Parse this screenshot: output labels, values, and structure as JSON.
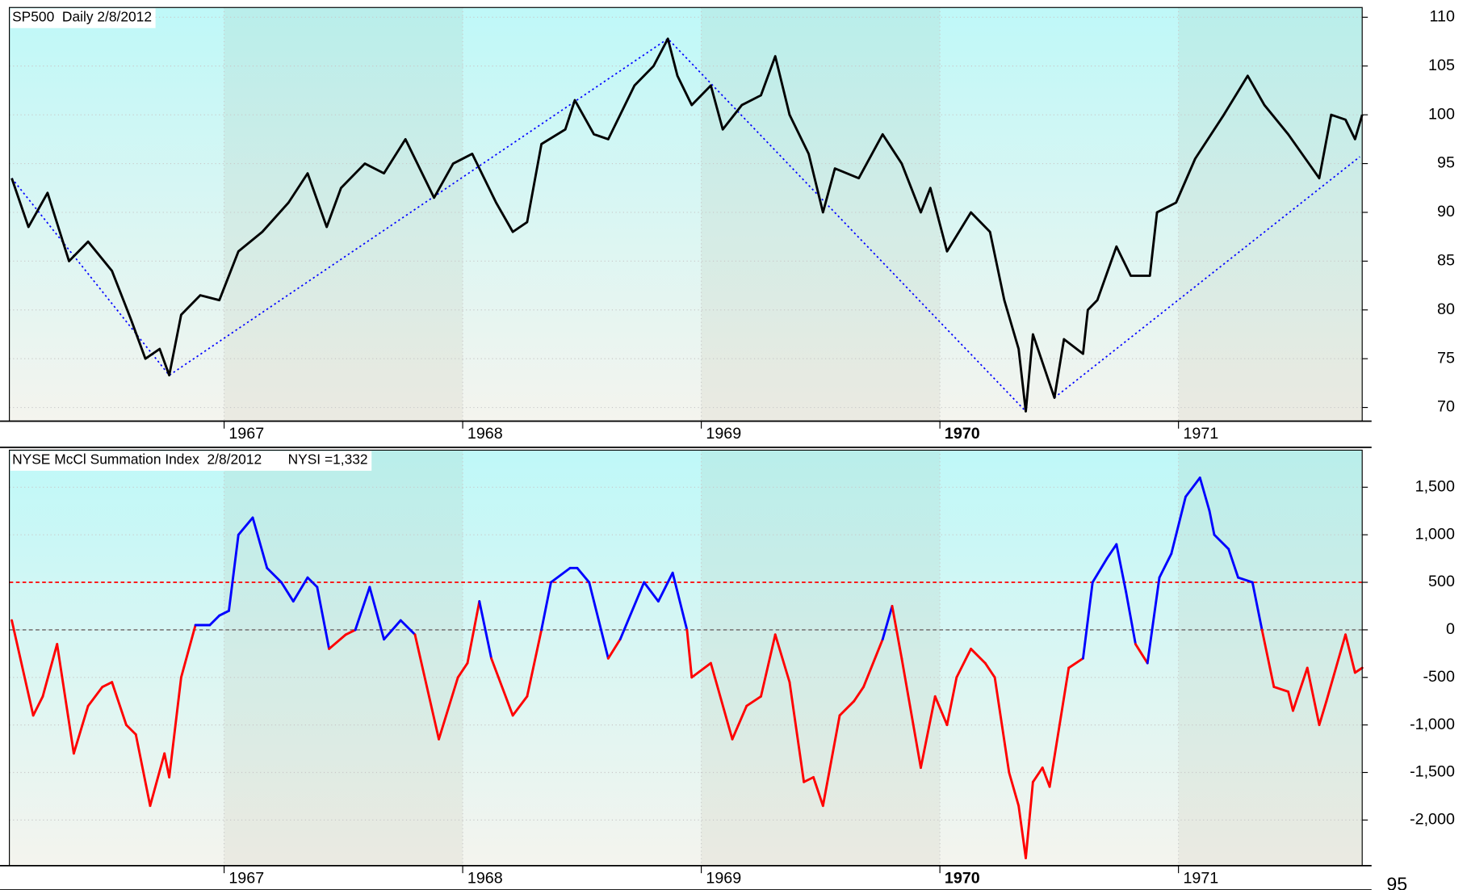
{
  "chart_data": [
    {
      "type": "line",
      "title": "SP500  Daily 2/8/2012",
      "x": [
        1966.11,
        1966.18,
        1966.26,
        1966.35,
        1966.43,
        1966.53,
        1966.61,
        1966.67,
        1966.73,
        1966.77,
        1966.82,
        1966.9,
        1966.98,
        1967.06,
        1967.16,
        1967.27,
        1967.35,
        1967.43,
        1967.49,
        1967.59,
        1967.67,
        1967.76,
        1967.88,
        1967.96,
        1968.04,
        1968.14,
        1968.21,
        1968.27,
        1968.33,
        1968.43,
        1968.47,
        1968.55,
        1968.61,
        1968.72,
        1968.8,
        1968.86,
        1968.9,
        1968.96,
        1969.04,
        1969.09,
        1969.17,
        1969.25,
        1969.31,
        1969.37,
        1969.45,
        1969.51,
        1969.56,
        1969.66,
        1969.76,
        1969.84,
        1969.92,
        1969.96,
        1970.03,
        1970.13,
        1970.21,
        1970.27,
        1970.33,
        1970.36,
        1970.39,
        1970.48,
        1970.52,
        1970.6,
        1970.62,
        1970.66,
        1970.74,
        1970.8,
        1970.88,
        1970.91,
        1970.99,
        1971.07,
        1971.19,
        1971.29,
        1971.36,
        1971.46,
        1971.59,
        1971.64,
        1971.7,
        1971.74,
        1971.77
      ],
      "series": [
        {
          "name": "SP500",
          "color": "#000000",
          "values": [
            93.5,
            88.5,
            92,
            85,
            87,
            84,
            79,
            75,
            76,
            73.3,
            79.5,
            81.5,
            81,
            86,
            88,
            91,
            94,
            88.5,
            92.5,
            95,
            94,
            97.5,
            91.5,
            95,
            96,
            91,
            88,
            89,
            97,
            98.5,
            101.5,
            98,
            97.5,
            103,
            105,
            107.8,
            104,
            101,
            103,
            98.5,
            101,
            102,
            106,
            100,
            96,
            90,
            94.5,
            93.5,
            98,
            95,
            90,
            92.5,
            86,
            90,
            88,
            81,
            76,
            69.6,
            77.5,
            71,
            77,
            75.5,
            80,
            81,
            86.5,
            83.5,
            83.5,
            90,
            91,
            95.5,
            100,
            104,
            101,
            98,
            93.5,
            100,
            99.5,
            97.5,
            100
          ]
        }
      ],
      "trendlines": [
        {
          "color": "#0000ff",
          "x": [
            1966.11,
            1966.77,
            1968.86,
            1970.36
          ],
          "values": [
            93.5,
            73.3,
            107.8,
            69.6
          ]
        },
        {
          "color": "#0000ff",
          "x": [
            1970.48,
            1971.76
          ],
          "values": [
            71,
            95.7
          ]
        }
      ],
      "xlim": [
        1966.1,
        1971.77
      ],
      "xticks": [
        1967,
        1968,
        1969,
        1970,
        1971
      ],
      "ylim": [
        68.6,
        111
      ],
      "yticks": [
        70,
        75,
        80,
        85,
        90,
        95,
        100,
        105,
        110
      ],
      "grid": true
    },
    {
      "type": "line",
      "title": "NYSE McCl Summation Index  2/8/2012",
      "annotation": "NYSI =1,332",
      "x": [
        1966.11,
        1966.2,
        1966.24,
        1966.3,
        1966.37,
        1966.43,
        1966.49,
        1966.53,
        1966.59,
        1966.63,
        1966.69,
        1966.75,
        1966.77,
        1966.82,
        1966.88,
        1966.94,
        1966.98,
        1967.02,
        1967.06,
        1967.12,
        1967.18,
        1967.24,
        1967.29,
        1967.35,
        1967.39,
        1967.44,
        1967.51,
        1967.55,
        1967.61,
        1967.67,
        1967.74,
        1967.8,
        1967.9,
        1967.98,
        1968.02,
        1968.07,
        1968.12,
        1968.21,
        1968.27,
        1968.33,
        1968.37,
        1968.45,
        1968.48,
        1968.53,
        1968.61,
        1968.66,
        1968.76,
        1968.82,
        1968.88,
        1968.94,
        1968.96,
        1969.04,
        1969.13,
        1969.19,
        1969.25,
        1969.31,
        1969.37,
        1969.43,
        1969.47,
        1969.51,
        1969.58,
        1969.64,
        1969.68,
        1969.76,
        1969.8,
        1969.84,
        1969.92,
        1969.98,
        1970.03,
        1970.07,
        1970.13,
        1970.19,
        1970.23,
        1970.29,
        1970.33,
        1970.36,
        1970.39,
        1970.43,
        1970.46,
        1970.54,
        1970.6,
        1970.64,
        1970.7,
        1970.74,
        1970.78,
        1970.82,
        1970.87,
        1970.92,
        1970.97,
        1971.03,
        1971.09,
        1971.13,
        1971.15,
        1971.21,
        1971.25,
        1971.31,
        1971.35,
        1971.4,
        1971.46,
        1971.48,
        1971.54,
        1971.59,
        1971.62,
        1971.7,
        1971.74,
        1971.77
      ],
      "series": [
        {
          "name": "NYSI",
          "color_above": "#0000ff",
          "color_below": "#ff0000",
          "color_split": 0,
          "values": [
            100,
            -900,
            -700,
            -150,
            -1300,
            -800,
            -600,
            -550,
            -1000,
            -1100,
            -1850,
            -1300,
            -1550,
            -500,
            50,
            50,
            150,
            200,
            1000,
            1180,
            650,
            500,
            300,
            550,
            450,
            -200,
            -50,
            0,
            450,
            -100,
            100,
            -50,
            -1150,
            -500,
            -350,
            300,
            -300,
            -900,
            -700,
            0,
            500,
            650,
            650,
            500,
            -300,
            -100,
            500,
            300,
            600,
            0,
            -500,
            -350,
            -1150,
            -800,
            -700,
            -50,
            -550,
            -1600,
            -1550,
            -1850,
            -900,
            -750,
            -600,
            -100,
            250,
            -300,
            -1450,
            -700,
            -1000,
            -500,
            -200,
            -350,
            -500,
            -1500,
            -1850,
            -2400,
            -1600,
            -1450,
            -1650,
            -400,
            -300,
            500,
            750,
            900,
            400,
            -150,
            -350,
            550,
            800,
            1400,
            1600,
            1250,
            1000,
            850,
            550,
            500,
            0,
            -600,
            -650,
            -850,
            -400,
            -1000,
            -750,
            -50,
            -450,
            -400
          ]
        }
      ],
      "reference_lines": [
        {
          "value": 500,
          "color": "#ff0000"
        },
        {
          "value": 0,
          "color": "#808080"
        }
      ],
      "xlim": [
        1966.1,
        1971.77
      ],
      "xticks": [
        1967,
        1968,
        1969,
        1970,
        1971
      ],
      "ylim": [
        -2480,
        1890
      ],
      "yticks": [
        {
          "value": -2000,
          "label": "-2,000"
        },
        {
          "value": -1500,
          "label": "-1,500"
        },
        {
          "value": -1000,
          "label": "-1,000"
        },
        -500,
        0,
        500,
        {
          "value": 1000,
          "label": "1,000"
        },
        {
          "value": 1500,
          "label": "1,500"
        }
      ],
      "grid": true
    }
  ],
  "clipped_label": "95"
}
